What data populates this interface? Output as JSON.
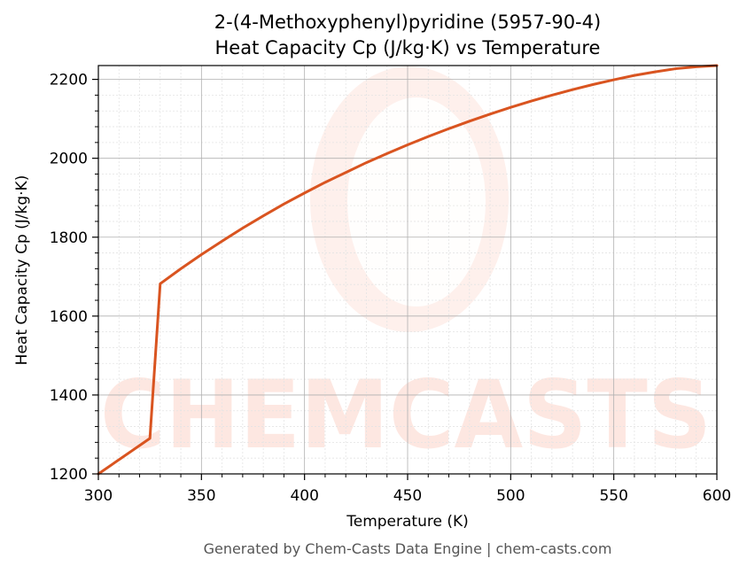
{
  "chart_data": {
    "type": "line",
    "title": "2-(4-Methoxyphenyl)pyridine (5957-90-4)",
    "subtitle": "Heat Capacity Cp (J/kg·K) vs Temperature",
    "xlabel": "Temperature (K)",
    "ylabel": "Heat Capacity Cp (J/kg·K)",
    "xlim": [
      300,
      600
    ],
    "ylim": [
      1200,
      2235
    ],
    "xticks": [
      300,
      350,
      400,
      450,
      500,
      550,
      600
    ],
    "yticks": [
      1200,
      1400,
      1600,
      1800,
      2000,
      2200
    ],
    "grid": true,
    "series": [
      {
        "color": "#d95420",
        "x": [
          300,
          325,
          330,
          340,
          350,
          360,
          370,
          380,
          390,
          400,
          410,
          420,
          430,
          440,
          450,
          460,
          470,
          480,
          490,
          500,
          510,
          520,
          530,
          540,
          550,
          560,
          570,
          580,
          590,
          600
        ],
        "y": [
          1200,
          1290,
          1682,
          1720,
          1756,
          1790,
          1823,
          1854,
          1884,
          1912,
          1939,
          1964,
          1989,
          2012,
          2034,
          2055,
          2075,
          2094,
          2112,
          2129,
          2145,
          2160,
          2174,
          2187,
          2199,
          2210,
          2219,
          2227,
          2232,
          2235
        ]
      }
    ]
  },
  "watermark": {
    "text": "CHEMCASTS",
    "color": "#fde3dc"
  },
  "footer": "Generated by Chem-Casts Data Engine | chem-casts.com"
}
